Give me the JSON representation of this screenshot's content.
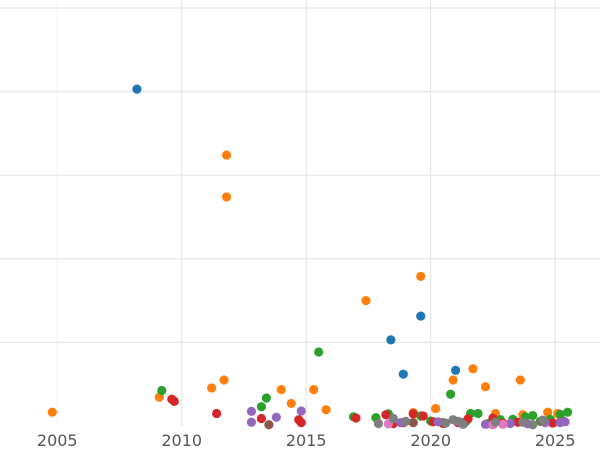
{
  "chart_data": {
    "type": "scatter",
    "title": "",
    "xlabel": "",
    "ylabel": "",
    "xlim": [
      2002.7,
      2026.8
    ],
    "ylim": [
      0,
      100
    ],
    "x_ticks": [
      2005,
      2010,
      2015,
      2020,
      2025
    ],
    "x_tick_labels": [
      "2005",
      "2010",
      "2015",
      "2020",
      "2025"
    ],
    "y_gridlines": [
      20,
      40,
      60,
      80,
      100
    ],
    "grid": true,
    "legend": "none",
    "series": [
      {
        "color": "#1f77b4",
        "points": [
          [
            2008.2,
            80.6
          ],
          [
            2018.4,
            20.6
          ],
          [
            2019.6,
            26.3
          ],
          [
            2018.9,
            12.4
          ],
          [
            2021.0,
            13.3
          ]
        ]
      },
      {
        "color": "#ff7f0e",
        "points": [
          [
            2004.8,
            3.3
          ],
          [
            2009.1,
            6.9
          ],
          [
            2011.2,
            9.1
          ],
          [
            2011.7,
            11.0
          ],
          [
            2011.8,
            64.8
          ],
          [
            2011.8,
            54.8
          ],
          [
            2014.0,
            8.7
          ],
          [
            2014.4,
            5.4
          ],
          [
            2015.3,
            8.7
          ],
          [
            2015.8,
            3.9
          ],
          [
            2017.4,
            30.0
          ],
          [
            2019.3,
            3.2
          ],
          [
            2019.6,
            35.8
          ],
          [
            2020.2,
            4.2
          ],
          [
            2020.9,
            11.0
          ],
          [
            2021.7,
            13.7
          ],
          [
            2022.2,
            9.4
          ],
          [
            2022.6,
            3.0
          ],
          [
            2023.6,
            11.0
          ],
          [
            2023.7,
            2.7
          ],
          [
            2024.7,
            3.3
          ],
          [
            2025.2,
            1.0
          ],
          [
            2025.1,
            3.0
          ]
        ]
      },
      {
        "color": "#2ca02c",
        "points": [
          [
            2009.2,
            8.5
          ],
          [
            2013.2,
            4.6
          ],
          [
            2013.4,
            6.7
          ],
          [
            2015.5,
            17.7
          ],
          [
            2016.9,
            2.2
          ],
          [
            2017.8,
            2.0
          ],
          [
            2018.3,
            2.9
          ],
          [
            2019.6,
            2.4
          ],
          [
            2020.0,
            1.2
          ],
          [
            2020.5,
            0.8
          ],
          [
            2020.8,
            7.6
          ],
          [
            2021.4,
            1.0
          ],
          [
            2021.6,
            3.0
          ],
          [
            2021.9,
            3.0
          ],
          [
            2022.3,
            0.6
          ],
          [
            2022.8,
            1.5
          ],
          [
            2023.3,
            1.6
          ],
          [
            2023.8,
            2.2
          ],
          [
            2024.1,
            2.5
          ],
          [
            2024.4,
            1.1
          ],
          [
            2024.8,
            1.6
          ],
          [
            2025.2,
            2.8
          ],
          [
            2025.5,
            3.3
          ],
          [
            2025.3,
            1.3
          ]
        ]
      },
      {
        "color": "#d62728",
        "points": [
          [
            2009.6,
            6.4
          ],
          [
            2009.7,
            5.9
          ],
          [
            2011.4,
            3.0
          ],
          [
            2013.2,
            1.8
          ],
          [
            2014.7,
            1.5
          ],
          [
            2014.8,
            0.8
          ],
          [
            2017.0,
            1.9
          ],
          [
            2018.2,
            2.7
          ],
          [
            2018.5,
            0.6
          ],
          [
            2018.9,
            0.8
          ],
          [
            2019.3,
            2.9
          ],
          [
            2019.7,
            2.4
          ],
          [
            2020.1,
            1.0
          ],
          [
            2020.5,
            0.6
          ],
          [
            2021.1,
            0.8
          ],
          [
            2021.5,
            1.7
          ],
          [
            2022.5,
            1.9
          ],
          [
            2022.9,
            0.7
          ],
          [
            2023.5,
            0.9
          ],
          [
            2024.5,
            1.2
          ],
          [
            2024.9,
            0.7
          ],
          [
            2025.2,
            0.9
          ]
        ]
      },
      {
        "color": "#9467bd",
        "points": [
          [
            2012.8,
            3.5
          ],
          [
            2012.8,
            0.9
          ],
          [
            2013.8,
            2.1
          ],
          [
            2014.8,
            3.6
          ],
          [
            2018.8,
            0.8
          ],
          [
            2020.3,
            1.0
          ],
          [
            2021.1,
            1.1
          ],
          [
            2022.2,
            0.4
          ],
          [
            2023.2,
            0.6
          ],
          [
            2023.9,
            0.5
          ],
          [
            2024.6,
            0.8
          ],
          [
            2025.2,
            0.8
          ],
          [
            2025.4,
            1.0
          ]
        ]
      },
      {
        "color": "#8c564b",
        "points": [
          [
            2013.5,
            0.3
          ],
          [
            2019.3,
            0.8
          ]
        ]
      },
      {
        "color": "#e377c2",
        "points": [
          [
            2018.3,
            0.5
          ],
          [
            2022.5,
            0.3
          ],
          [
            2022.9,
            0.4
          ]
        ]
      },
      {
        "color": "#7f7f7f",
        "points": [
          [
            2017.9,
            0.6
          ],
          [
            2018.5,
            1.8
          ],
          [
            2019.0,
            1.1
          ],
          [
            2020.6,
            0.7
          ],
          [
            2020.9,
            1.5
          ],
          [
            2021.2,
            0.9
          ],
          [
            2021.3,
            0.4
          ],
          [
            2022.6,
            0.9
          ],
          [
            2023.7,
            0.9
          ],
          [
            2024.1,
            0.3
          ],
          [
            2024.5,
            1.4
          ]
        ]
      }
    ]
  }
}
